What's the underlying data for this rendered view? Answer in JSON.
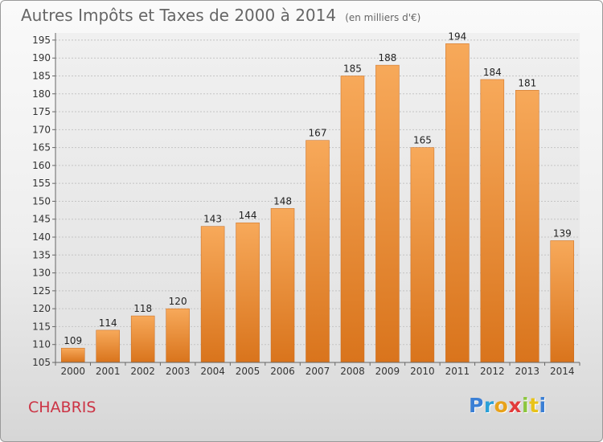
{
  "title": "Autres Impôts et Taxes de 2000 à 2014",
  "subtitle": "(en milliers d'€)",
  "commune": "CHABRIS",
  "logo": {
    "letters": [
      "P",
      "r",
      "o",
      "x",
      "i",
      "t",
      "i"
    ],
    "colors": [
      "#3a7fd5",
      "#2aa0d8",
      "#e8a21a",
      "#e23b3b",
      "#8cc63f",
      "#e8c31a",
      "#3a7fd5"
    ]
  },
  "chart_data": {
    "type": "bar",
    "title": "Autres Impôts et Taxes de 2000 à 2014",
    "subtitle": "(en milliers d'€)",
    "xlabel": "",
    "ylabel": "",
    "categories": [
      "2000",
      "2001",
      "2002",
      "2003",
      "2004",
      "2005",
      "2006",
      "2007",
      "2008",
      "2009",
      "2010",
      "2011",
      "2012",
      "2013",
      "2014"
    ],
    "values": [
      109,
      114,
      118,
      120,
      143,
      144,
      148,
      167,
      185,
      188,
      165,
      194,
      184,
      181,
      139
    ],
    "ylim": [
      105,
      197
    ],
    "yticks": [
      105,
      110,
      115,
      120,
      125,
      130,
      135,
      140,
      145,
      150,
      155,
      160,
      165,
      170,
      175,
      180,
      185,
      190,
      195
    ],
    "grid": true,
    "bar_color_top": "#f7a95a",
    "bar_color_bottom": "#d9741c"
  }
}
